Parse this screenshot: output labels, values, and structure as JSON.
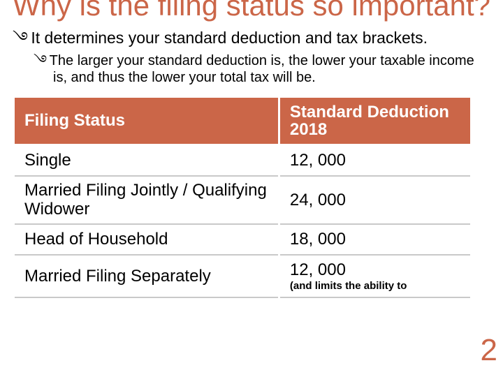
{
  "colors": {
    "accent": "#cb6648",
    "table_header_bg": "#cb6648",
    "table_header_fg": "#ffffff",
    "table_border": "#c9c9c9",
    "text": "#000000",
    "bg": "#ffffff"
  },
  "title": "Why is the filing status so important?",
  "bullet_glyph": "࿓",
  "bullet1": "It determines your standard deduction and tax brackets.",
  "bullet2": "The larger your standard deduction is, the lower your taxable income is, and thus the lower your total tax will be.",
  "table": {
    "columns": [
      "Filing Status",
      "Standard Deduction 2018"
    ],
    "rows": [
      {
        "status": "Single",
        "deduction": "12, 000",
        "note": ""
      },
      {
        "status": "Married Filing Jointly / Qualifying Widower",
        "deduction": "24, 000",
        "note": ""
      },
      {
        "status": "Head of Household",
        "deduction": "18, 000",
        "note": ""
      },
      {
        "status": "Married Filing Separately",
        "deduction": "12, 000",
        "note": "(and limits the ability to"
      }
    ],
    "header_fontsize": 24,
    "cell_fontsize": 24,
    "footnote_fontsize": 15
  },
  "page_number": "2"
}
